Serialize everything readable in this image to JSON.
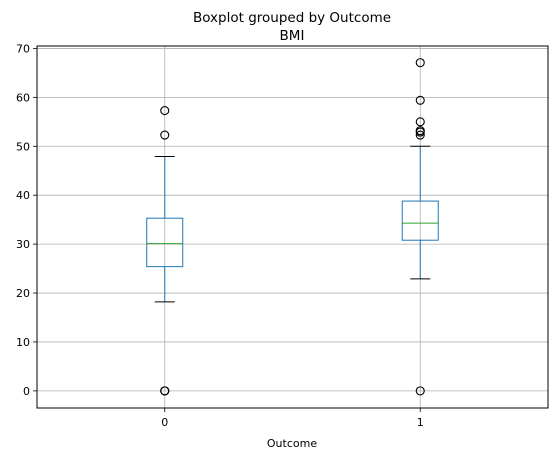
{
  "chart_data": {
    "type": "box",
    "suptitle": "Boxplot grouped by Outcome",
    "title": "BMI",
    "xlabel": "Outcome",
    "ylabel": "",
    "ylim": [
      -3.5,
      70.5
    ],
    "yticks": [
      0,
      10,
      20,
      30,
      40,
      50,
      60,
      70
    ],
    "categories": [
      "0",
      "1"
    ],
    "grid": true,
    "legend": "none",
    "colors": {
      "box": "#1f77b4",
      "median": "#2ca02c",
      "whisker_cap": "#000000",
      "grid": "#b0b0b0",
      "flier": "#000000"
    },
    "boxes": [
      {
        "category": "0",
        "whisker_low": 18.2,
        "q1": 25.4,
        "median": 30.1,
        "q3": 35.3,
        "whisker_high": 47.9,
        "fliers": [
          0,
          0,
          0,
          52.3,
          57.3
        ]
      },
      {
        "category": "1",
        "whisker_low": 22.9,
        "q1": 30.8,
        "median": 34.3,
        "q3": 38.8,
        "whisker_high": 50.0,
        "fliers": [
          0,
          52.3,
          52.9,
          53.2,
          55.0,
          59.4,
          67.1
        ]
      }
    ]
  }
}
